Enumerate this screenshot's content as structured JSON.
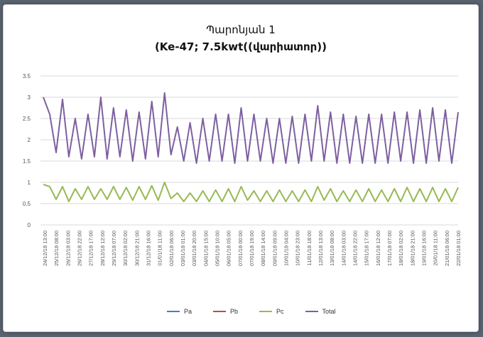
{
  "chart_data": {
    "type": "line",
    "title": "Պարոնյան 1",
    "subtitle": "(Ke-47; 7.5kwt((վարիատոր))",
    "ylim": [
      0,
      3.5
    ],
    "yticks": [
      "0",
      "0.5",
      "1",
      "1.5",
      "2",
      "2.5",
      "3",
      "3.5"
    ],
    "xticks": [
      "24/12/18 13:00",
      "25/12/18 08:00",
      "26/12/18 03:00",
      "26/12/18 22:00",
      "27/12/18 17:00",
      "28/12/18 12:00",
      "29/12/18 07:00",
      "30/12/18 02:00",
      "30/12/18 21:00",
      "31/12/18 16:00",
      "01/01/18 11:00",
      "02/01/18 06:00",
      "03/01/18 01:00",
      "03/01/18 20:00",
      "04/01/18 15:00",
      "05/01/18 10:00",
      "06/01/18 05:00",
      "07/01/18 00:00",
      "07/01/18 19:00",
      "08/01/18 14:00",
      "09/01/18 09:00",
      "10/01/18 04:00",
      "10/01/18 23:00",
      "11/01/18 18:00",
      "12/01/18 13:00",
      "13/01/18 08:00",
      "14/01/18 03:00",
      "14/01/18 22:00",
      "15/01/18 17:00",
      "16/01/18 12:00",
      "17/01/18 07:00",
      "18/01/18 02:00",
      "18/01/18 21:00",
      "19/01/18 16:00",
      "20/01/18 11:00",
      "21/01/18 06:00",
      "22/01/18 01:00"
    ],
    "grid": true,
    "legend_position": "bottom",
    "series": [
      {
        "name": "Pa",
        "color": "#4a7ebb",
        "values": []
      },
      {
        "name": "Pb",
        "color": "#be4b48",
        "values": []
      },
      {
        "name": "Pc",
        "color": "#98b954",
        "values": [
          0.95,
          0.9,
          0.6,
          0.9,
          0.55,
          0.85,
          0.6,
          0.9,
          0.6,
          0.85,
          0.6,
          0.9,
          0.6,
          0.88,
          0.58,
          0.9,
          0.6,
          0.92,
          0.58,
          1.0,
          0.62,
          0.75,
          0.55,
          0.75,
          0.55,
          0.8,
          0.55,
          0.82,
          0.55,
          0.85,
          0.55,
          0.9,
          0.58,
          0.8,
          0.55,
          0.8,
          0.55,
          0.82,
          0.55,
          0.8,
          0.55,
          0.82,
          0.55,
          0.9,
          0.58,
          0.85,
          0.55,
          0.8,
          0.55,
          0.82,
          0.55,
          0.85,
          0.55,
          0.82,
          0.55,
          0.85,
          0.55,
          0.88,
          0.55,
          0.85,
          0.55,
          0.88,
          0.55,
          0.85,
          0.55,
          0.88
        ]
      },
      {
        "name": "Total",
        "color": "#7d60a0",
        "values": [
          3.0,
          2.6,
          1.7,
          2.95,
          1.6,
          2.5,
          1.55,
          2.6,
          1.6,
          3.0,
          1.55,
          2.75,
          1.6,
          2.7,
          1.5,
          2.65,
          1.55,
          2.9,
          1.6,
          3.1,
          1.65,
          2.3,
          1.5,
          2.4,
          1.45,
          2.5,
          1.5,
          2.6,
          1.5,
          2.6,
          1.45,
          2.75,
          1.5,
          2.6,
          1.5,
          2.5,
          1.45,
          2.5,
          1.45,
          2.55,
          1.45,
          2.6,
          1.5,
          2.8,
          1.5,
          2.65,
          1.45,
          2.6,
          1.45,
          2.55,
          1.45,
          2.6,
          1.45,
          2.6,
          1.45,
          2.65,
          1.5,
          2.65,
          1.45,
          2.7,
          1.45,
          2.75,
          1.5,
          2.7,
          1.45,
          2.65
        ]
      }
    ]
  }
}
